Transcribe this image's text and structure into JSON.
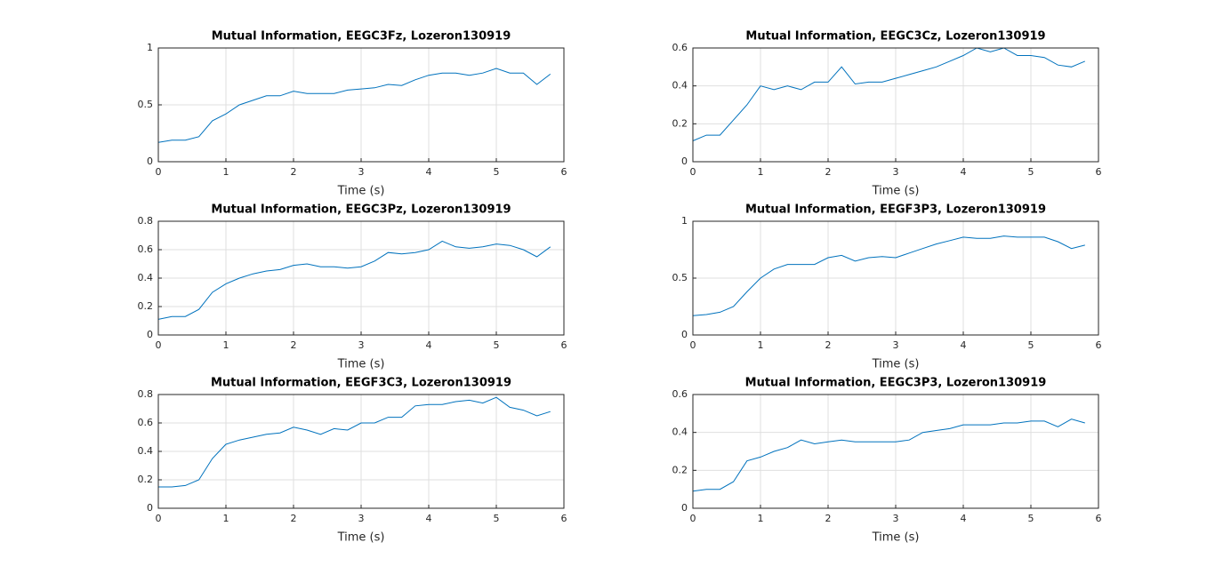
{
  "chart_data": [
    {
      "type": "line",
      "title": "Mutual Information, EEGC3Fz, Lozeron130919",
      "xlabel": "Time (s)",
      "x": [
        0,
        0.2,
        0.4,
        0.6,
        0.8,
        1,
        1.2,
        1.4,
        1.6,
        1.8,
        2,
        2.2,
        2.4,
        2.6,
        2.8,
        3,
        3.2,
        3.4,
        3.6,
        3.8,
        4,
        4.2,
        4.4,
        4.6,
        4.8,
        5,
        5.2,
        5.4,
        5.6,
        5.8
      ],
      "values": [
        0.17,
        0.19,
        0.19,
        0.22,
        0.36,
        0.42,
        0.5,
        0.54,
        0.58,
        0.58,
        0.62,
        0.6,
        0.6,
        0.6,
        0.63,
        0.64,
        0.65,
        0.68,
        0.67,
        0.72,
        0.76,
        0.78,
        0.78,
        0.76,
        0.78,
        0.82,
        0.78,
        0.78,
        0.68,
        0.77
      ],
      "color": "#0072bd",
      "xlim": [
        0,
        6
      ],
      "xticks": [
        0,
        1,
        2,
        3,
        4,
        5,
        6
      ],
      "ylim": [
        0,
        1
      ],
      "yticks": [
        0,
        0.5,
        1
      ],
      "grid": true
    },
    {
      "type": "line",
      "title": "Mutual Information, EEGC3Cz, Lozeron130919",
      "xlabel": "Time (s)",
      "x": [
        0,
        0.2,
        0.4,
        0.6,
        0.8,
        1,
        1.2,
        1.4,
        1.6,
        1.8,
        2,
        2.2,
        2.4,
        2.6,
        2.8,
        3,
        3.2,
        3.4,
        3.6,
        3.8,
        4,
        4.2,
        4.4,
        4.6,
        4.8,
        5,
        5.2,
        5.4,
        5.6,
        5.8
      ],
      "values": [
        0.11,
        0.14,
        0.14,
        0.22,
        0.3,
        0.4,
        0.38,
        0.4,
        0.38,
        0.42,
        0.42,
        0.5,
        0.41,
        0.42,
        0.42,
        0.44,
        0.46,
        0.48,
        0.5,
        0.53,
        0.56,
        0.6,
        0.58,
        0.6,
        0.56,
        0.56,
        0.55,
        0.51,
        0.5,
        0.53
      ],
      "color": "#0072bd",
      "xlim": [
        0,
        6
      ],
      "xticks": [
        0,
        1,
        2,
        3,
        4,
        5,
        6
      ],
      "ylim": [
        0,
        0.6
      ],
      "yticks": [
        0,
        0.2,
        0.4,
        0.6
      ],
      "grid": true
    },
    {
      "type": "line",
      "title": "Mutual Information, EEGC3Pz, Lozeron130919",
      "xlabel": "Time (s)",
      "x": [
        0,
        0.2,
        0.4,
        0.6,
        0.8,
        1,
        1.2,
        1.4,
        1.6,
        1.8,
        2,
        2.2,
        2.4,
        2.6,
        2.8,
        3,
        3.2,
        3.4,
        3.6,
        3.8,
        4,
        4.2,
        4.4,
        4.6,
        4.8,
        5,
        5.2,
        5.4,
        5.6,
        5.8
      ],
      "values": [
        0.11,
        0.13,
        0.13,
        0.18,
        0.3,
        0.36,
        0.4,
        0.43,
        0.45,
        0.46,
        0.49,
        0.5,
        0.48,
        0.48,
        0.47,
        0.48,
        0.52,
        0.58,
        0.57,
        0.58,
        0.6,
        0.66,
        0.62,
        0.61,
        0.62,
        0.64,
        0.63,
        0.6,
        0.55,
        0.62
      ],
      "color": "#0072bd",
      "xlim": [
        0,
        6
      ],
      "xticks": [
        0,
        1,
        2,
        3,
        4,
        5,
        6
      ],
      "ylim": [
        0,
        0.8
      ],
      "yticks": [
        0,
        0.2,
        0.4,
        0.6,
        0.8
      ],
      "grid": true
    },
    {
      "type": "line",
      "title": "Mutual Information, EEGF3P3, Lozeron130919",
      "xlabel": "Time (s)",
      "x": [
        0,
        0.2,
        0.4,
        0.6,
        0.8,
        1,
        1.2,
        1.4,
        1.6,
        1.8,
        2,
        2.2,
        2.4,
        2.6,
        2.8,
        3,
        3.2,
        3.4,
        3.6,
        3.8,
        4,
        4.2,
        4.4,
        4.6,
        4.8,
        5,
        5.2,
        5.4,
        5.6,
        5.8
      ],
      "values": [
        0.17,
        0.18,
        0.2,
        0.25,
        0.38,
        0.5,
        0.58,
        0.62,
        0.62,
        0.62,
        0.68,
        0.7,
        0.65,
        0.68,
        0.69,
        0.68,
        0.72,
        0.76,
        0.8,
        0.83,
        0.86,
        0.85,
        0.85,
        0.87,
        0.86,
        0.86,
        0.86,
        0.82,
        0.76,
        0.79
      ],
      "color": "#0072bd",
      "xlim": [
        0,
        6
      ],
      "xticks": [
        0,
        1,
        2,
        3,
        4,
        5,
        6
      ],
      "ylim": [
        0,
        1
      ],
      "yticks": [
        0,
        0.5,
        1
      ],
      "grid": true
    },
    {
      "type": "line",
      "title": "Mutual Information, EEGF3C3, Lozeron130919",
      "xlabel": "Time (s)",
      "x": [
        0,
        0.2,
        0.4,
        0.6,
        0.8,
        1,
        1.2,
        1.4,
        1.6,
        1.8,
        2,
        2.2,
        2.4,
        2.6,
        2.8,
        3,
        3.2,
        3.4,
        3.6,
        3.8,
        4,
        4.2,
        4.4,
        4.6,
        4.8,
        5,
        5.2,
        5.4,
        5.6,
        5.8
      ],
      "values": [
        0.15,
        0.15,
        0.16,
        0.2,
        0.35,
        0.45,
        0.48,
        0.5,
        0.52,
        0.53,
        0.57,
        0.55,
        0.52,
        0.56,
        0.55,
        0.6,
        0.6,
        0.64,
        0.64,
        0.72,
        0.73,
        0.73,
        0.75,
        0.76,
        0.74,
        0.78,
        0.71,
        0.69,
        0.65,
        0.68
      ],
      "color": "#0072bd",
      "xlim": [
        0,
        6
      ],
      "xticks": [
        0,
        1,
        2,
        3,
        4,
        5,
        6
      ],
      "ylim": [
        0,
        0.8
      ],
      "yticks": [
        0,
        0.2,
        0.4,
        0.6,
        0.8
      ],
      "grid": true
    },
    {
      "type": "line",
      "title": "Mutual Information, EEGC3P3, Lozeron130919",
      "xlabel": "Time (s)",
      "x": [
        0,
        0.2,
        0.4,
        0.6,
        0.8,
        1,
        1.2,
        1.4,
        1.6,
        1.8,
        2,
        2.2,
        2.4,
        2.6,
        2.8,
        3,
        3.2,
        3.4,
        3.6,
        3.8,
        4,
        4.2,
        4.4,
        4.6,
        4.8,
        5,
        5.2,
        5.4,
        5.6,
        5.8
      ],
      "values": [
        0.09,
        0.1,
        0.1,
        0.14,
        0.25,
        0.27,
        0.3,
        0.32,
        0.36,
        0.34,
        0.35,
        0.36,
        0.35,
        0.35,
        0.35,
        0.35,
        0.36,
        0.4,
        0.41,
        0.42,
        0.44,
        0.44,
        0.44,
        0.45,
        0.45,
        0.46,
        0.46,
        0.43,
        0.47,
        0.45
      ],
      "color": "#0072bd",
      "xlim": [
        0,
        6
      ],
      "xticks": [
        0,
        1,
        2,
        3,
        4,
        5,
        6
      ],
      "ylim": [
        0,
        0.6
      ],
      "yticks": [
        0,
        0.2,
        0.4,
        0.6
      ],
      "grid": true
    }
  ]
}
